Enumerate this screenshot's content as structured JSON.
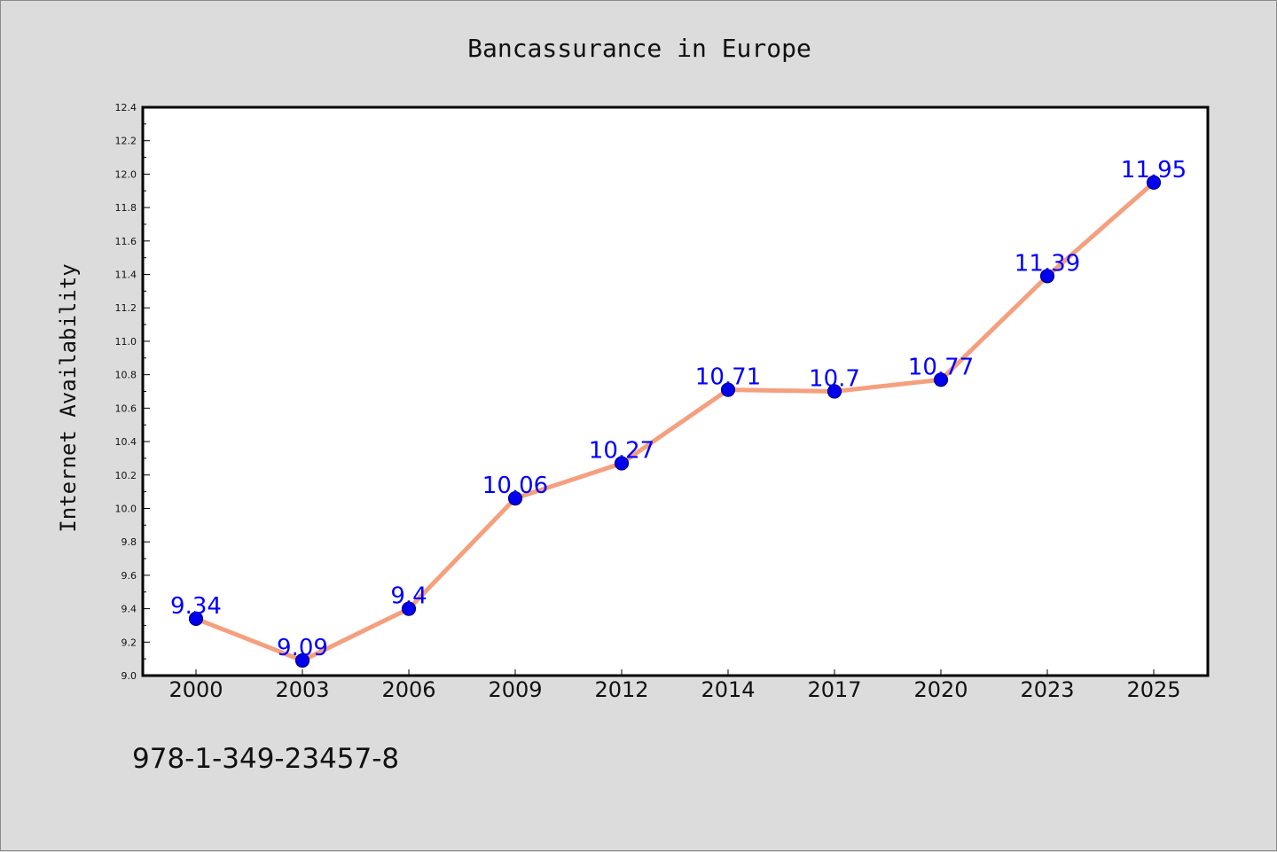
{
  "chart_data": {
    "type": "line",
    "title": "Bancassurance in Europe",
    "xlabel": "",
    "ylabel": "Internet Availability",
    "categories": [
      "2000",
      "2003",
      "2006",
      "2009",
      "2012",
      "2014",
      "2017",
      "2020",
      "2023",
      "2025"
    ],
    "series": [
      {
        "values": [
          9.34,
          9.09,
          9.4,
          10.06,
          10.27,
          10.71,
          10.7,
          10.77,
          11.39,
          11.95
        ],
        "data_labels": [
          "9.34",
          "9.09",
          "9.4",
          "10.06",
          "10.27",
          "10.71",
          "10.7",
          "10.77",
          "11.39",
          "11.95"
        ],
        "line_color": "#f4a07f",
        "marker_color": "#0000ee",
        "marker_edge": "#000080",
        "label_color": "#0000ff"
      }
    ],
    "ylim": [
      9.0,
      12.4
    ],
    "yticks": [
      "9.0",
      "9.2",
      "9.4",
      "9.6",
      "9.8",
      "10.0",
      "10.2",
      "10.4",
      "10.6",
      "10.8",
      "11.0",
      "11.2",
      "11.4",
      "11.6",
      "11.8",
      "12.0",
      "12.2",
      "12.4"
    ],
    "grid": false,
    "legend": "none",
    "background": "#dcdcdc",
    "plot_background": "#ffffff"
  },
  "footer": {
    "isbn": "978-1-349-23457-8"
  }
}
